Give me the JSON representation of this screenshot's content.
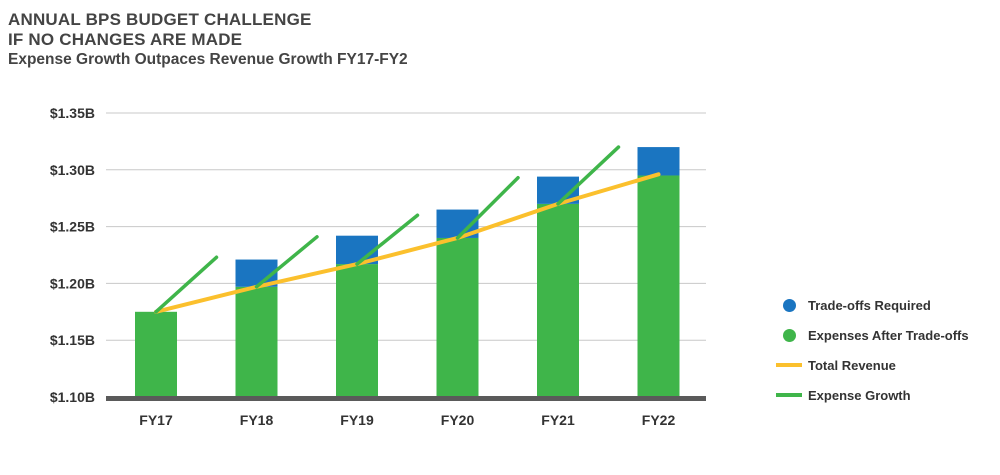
{
  "header": {
    "title_line1": "ANNUAL BPS BUDGET CHALLENGE",
    "title_line2": "IF NO CHANGES ARE MADE",
    "subtitle": "Expense Growth Outpaces Revenue Growth FY17-FY2"
  },
  "legend": [
    {
      "label": "Trade-offs Required",
      "color": "#1a75c1",
      "kind": "dot"
    },
    {
      "label": "Expenses After Trade-offs",
      "color": "#3fb54a",
      "kind": "dot"
    },
    {
      "label": "Total Revenue",
      "color": "#fbc02d",
      "kind": "line"
    },
    {
      "label": "Expense Growth",
      "color": "#3fb54a",
      "kind": "line"
    }
  ],
  "chart_data": {
    "type": "bar",
    "categories": [
      "FY17",
      "FY18",
      "FY19",
      "FY20",
      "FY21",
      "FY22"
    ],
    "series": [
      {
        "name": "Expenses After Trade-offs",
        "kind": "stacked-bar",
        "color": "#3fb54a",
        "values": [
          1.175,
          1.197,
          1.217,
          1.24,
          1.27,
          1.295
        ]
      },
      {
        "name": "Trade-offs Required",
        "kind": "stacked-bar",
        "color": "#1a75c1",
        "values": [
          0,
          0.024,
          0.025,
          0.025,
          0.024,
          0.025
        ]
      },
      {
        "name": "Total Revenue",
        "kind": "line",
        "color": "#fbc02d",
        "values": [
          1.175,
          1.197,
          1.217,
          1.24,
          1.27,
          1.296
        ]
      },
      {
        "name": "Expense Growth",
        "kind": "segments",
        "color": "#3fb54a",
        "segments": [
          {
            "from": 1.175,
            "to": 1.223
          },
          {
            "from": 1.197,
            "to": 1.241
          },
          {
            "from": 1.217,
            "to": 1.26
          },
          {
            "from": 1.24,
            "to": 1.293
          },
          {
            "from": 1.27,
            "to": 1.32
          }
        ]
      }
    ],
    "yticks": [
      "$1.10B",
      "$1.15B",
      "$1.20B",
      "$1.25B",
      "$1.30B",
      "$1.35B"
    ],
    "ytick_values": [
      1.1,
      1.15,
      1.2,
      1.25,
      1.3,
      1.35
    ],
    "ylim": [
      1.1,
      1.35
    ],
    "grid": true,
    "legend_position": "right"
  }
}
